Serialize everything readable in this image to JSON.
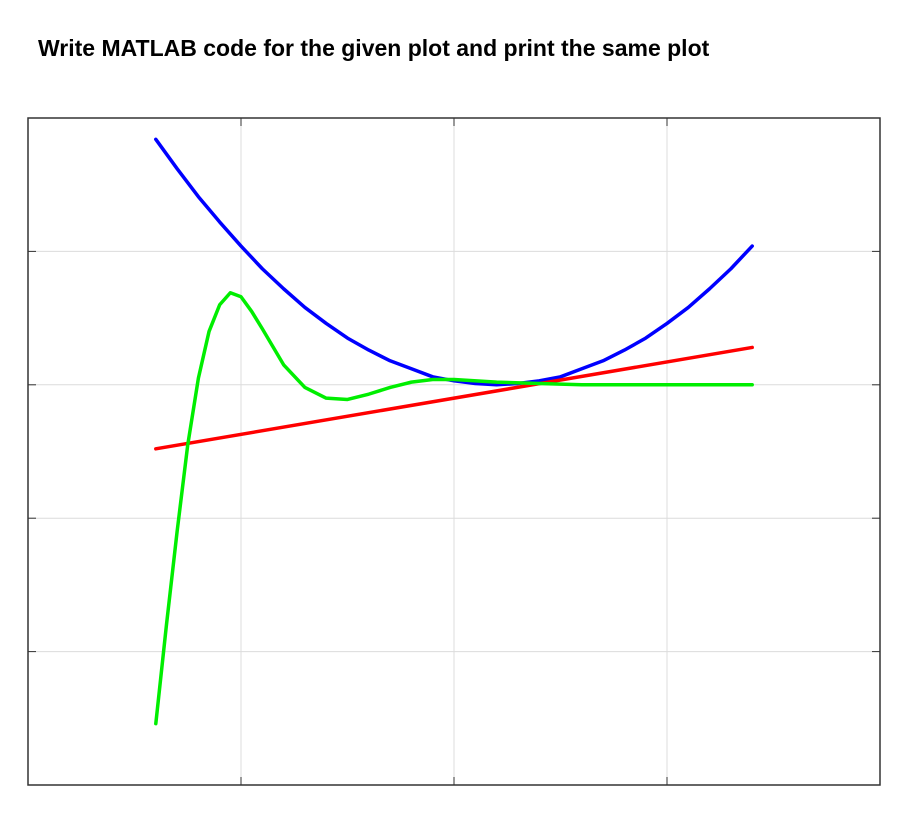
{
  "chart_data": {
    "type": "line",
    "title": "Write MATLAB code for the given plot and print the same plot",
    "xlim": [
      0,
      4
    ],
    "xticks": [
      1,
      2,
      3
    ],
    "ylim": [
      0,
      5
    ],
    "yticks": [
      1,
      2,
      3,
      4
    ],
    "grid": true,
    "series": [
      {
        "color": "#0000ff",
        "x": [
          0.6,
          0.7,
          0.8,
          0.9,
          1.0,
          1.1,
          1.2,
          1.3,
          1.4,
          1.5,
          1.6,
          1.7,
          1.8,
          1.9,
          2.0,
          2.1,
          2.2,
          2.3,
          2.4,
          2.5,
          2.6,
          2.7,
          2.8,
          2.9,
          3.0,
          3.1,
          3.2,
          3.3,
          3.4
        ],
        "values": [
          4.84,
          4.62,
          4.41,
          4.22,
          4.04,
          3.87,
          3.72,
          3.58,
          3.46,
          3.35,
          3.26,
          3.18,
          3.12,
          3.06,
          3.03,
          3.01,
          3.0,
          3.01,
          3.03,
          3.06,
          3.12,
          3.18,
          3.26,
          3.35,
          3.46,
          3.58,
          3.72,
          3.87,
          4.04
        ]
      },
      {
        "color": "#ff0000",
        "x": [
          0.6,
          3.4
        ],
        "values": [
          2.52,
          3.28
        ]
      },
      {
        "color": "#00ee00",
        "x": [
          0.6,
          0.65,
          0.7,
          0.75,
          0.8,
          0.85,
          0.9,
          0.95,
          1.0,
          1.05,
          1.1,
          1.2,
          1.3,
          1.4,
          1.5,
          1.6,
          1.7,
          1.8,
          1.9,
          2.0,
          2.2,
          2.4,
          2.6,
          2.8,
          3.0,
          3.2,
          3.4
        ],
        "values": [
          0.46,
          1.2,
          1.9,
          2.55,
          3.05,
          3.4,
          3.6,
          3.69,
          3.66,
          3.55,
          3.42,
          3.15,
          2.98,
          2.9,
          2.89,
          2.93,
          2.98,
          3.02,
          3.04,
          3.04,
          3.02,
          3.01,
          3.0,
          3.0,
          3.0,
          3.0,
          3.0
        ]
      }
    ]
  }
}
